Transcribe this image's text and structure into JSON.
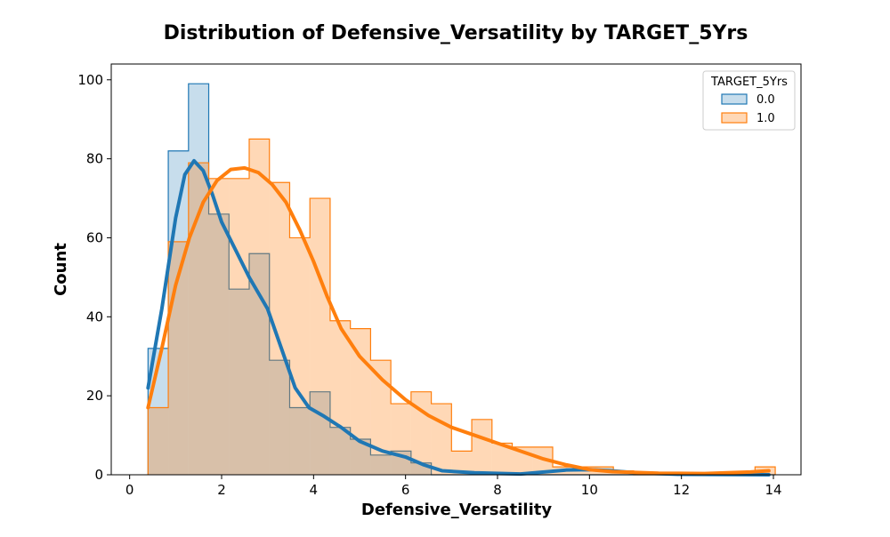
{
  "chart_data": {
    "type": "histogram",
    "title": "Distribution of Defensive_Versatility by TARGET_5Yrs",
    "xlabel": "Defensive_Versatility",
    "ylabel": "Count",
    "xlim": [
      -0.4,
      14.6
    ],
    "ylim": [
      0,
      104
    ],
    "xticks": [
      0,
      2,
      4,
      6,
      8,
      10,
      12,
      14
    ],
    "yticks": [
      0,
      20,
      40,
      60,
      80,
      100
    ],
    "grid": false,
    "legend": {
      "title": "TARGET_5Yrs",
      "placement": "top-right"
    },
    "bins": [
      0.4,
      0.84,
      1.28,
      1.72,
      2.16,
      2.6,
      3.04,
      3.48,
      3.92,
      4.36,
      4.8,
      5.24,
      5.68,
      6.12,
      6.56,
      7.0,
      7.44,
      7.88,
      8.32,
      8.76,
      9.2,
      9.64,
      10.08,
      10.52,
      10.96,
      11.4,
      11.84,
      12.28,
      12.72,
      13.16,
      13.6,
      14.04
    ],
    "series": [
      {
        "name": "0.0",
        "color": "#1f77b4",
        "fill": "#1f77b4",
        "fill_opacity": 0.25,
        "counts": [
          32,
          82,
          99,
          66,
          47,
          56,
          29,
          17,
          21,
          12,
          9,
          5,
          6,
          3,
          0,
          0,
          0,
          0,
          0,
          0,
          0,
          0,
          0,
          0,
          0,
          0,
          0,
          0,
          0,
          0,
          0
        ],
        "kde": [
          [
            0.4,
            22
          ],
          [
            0.7,
            42
          ],
          [
            1.0,
            65
          ],
          [
            1.2,
            76
          ],
          [
            1.4,
            79.5
          ],
          [
            1.6,
            77
          ],
          [
            1.8,
            71
          ],
          [
            2.0,
            64
          ],
          [
            2.3,
            57
          ],
          [
            2.6,
            50
          ],
          [
            3.0,
            42
          ],
          [
            3.3,
            32
          ],
          [
            3.6,
            22
          ],
          [
            3.9,
            17
          ],
          [
            4.2,
            15
          ],
          [
            4.6,
            12
          ],
          [
            5.0,
            8.5
          ],
          [
            5.5,
            6
          ],
          [
            6.0,
            4.5
          ],
          [
            6.4,
            2.5
          ],
          [
            6.8,
            1
          ],
          [
            7.5,
            0.5
          ],
          [
            8.5,
            0.2
          ],
          [
            9.5,
            1.2
          ],
          [
            10.0,
            1.3
          ],
          [
            10.5,
            1
          ],
          [
            11.0,
            0.5
          ],
          [
            12.0,
            0.1
          ],
          [
            13.0,
            0.05
          ],
          [
            13.9,
            0
          ]
        ]
      },
      {
        "name": "1.0",
        "color": "#ff7f0e",
        "fill": "#ff7f0e",
        "fill_opacity": 0.3,
        "counts": [
          17,
          59,
          79,
          75,
          75,
          85,
          74,
          60,
          70,
          39,
          37,
          29,
          18,
          21,
          18,
          6,
          14,
          8,
          7,
          7,
          2,
          2,
          2,
          1,
          0,
          0,
          0,
          0,
          0,
          0,
          2
        ],
        "kde": [
          [
            0.4,
            17
          ],
          [
            0.7,
            32
          ],
          [
            1.0,
            48
          ],
          [
            1.3,
            60
          ],
          [
            1.6,
            69
          ],
          [
            1.9,
            74.5
          ],
          [
            2.2,
            77.3
          ],
          [
            2.5,
            77.7
          ],
          [
            2.8,
            76.5
          ],
          [
            3.1,
            73.5
          ],
          [
            3.4,
            69
          ],
          [
            3.7,
            62
          ],
          [
            4.0,
            54
          ],
          [
            4.3,
            45
          ],
          [
            4.6,
            37
          ],
          [
            5.0,
            30
          ],
          [
            5.5,
            24
          ],
          [
            6.0,
            19
          ],
          [
            6.5,
            15
          ],
          [
            7.0,
            12
          ],
          [
            7.5,
            10
          ],
          [
            8.0,
            8
          ],
          [
            8.5,
            6
          ],
          [
            9.0,
            4
          ],
          [
            9.5,
            2.5
          ],
          [
            10.0,
            1.3
          ],
          [
            10.5,
            0.8
          ],
          [
            11.5,
            0.4
          ],
          [
            12.5,
            0.3
          ],
          [
            13.5,
            0.7
          ],
          [
            13.9,
            1
          ]
        ]
      }
    ]
  }
}
